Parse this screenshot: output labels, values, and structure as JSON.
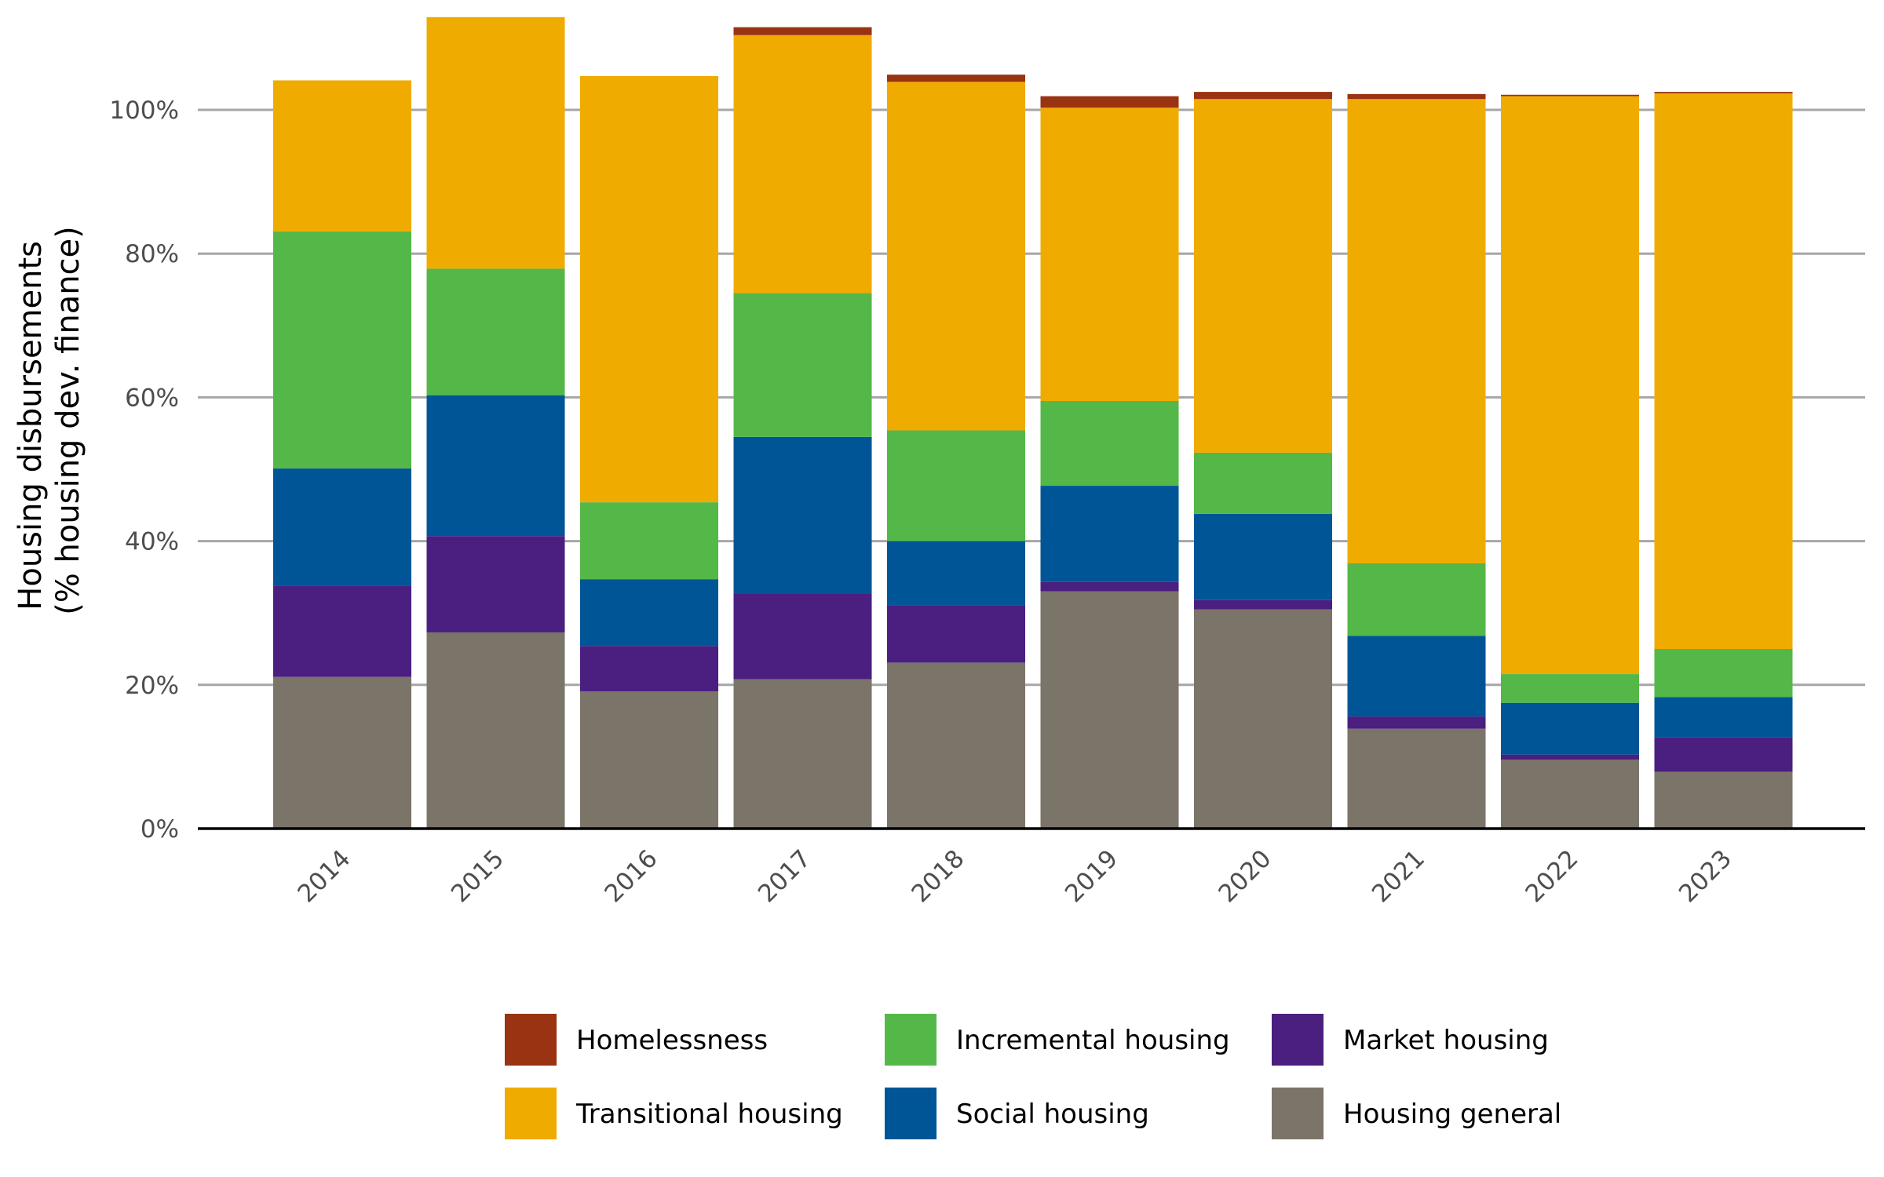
{
  "chart_data": {
    "type": "bar",
    "stacked": true,
    "ylabel_line1": "Housing disbursements",
    "ylabel_line2": "(% housing dev. finance)",
    "xlabel": "",
    "ylim": [
      0,
      115
    ],
    "yticks": [
      0,
      20,
      40,
      60,
      80,
      100
    ],
    "ytick_labels": [
      "0%",
      "20%",
      "40%",
      "60%",
      "80%",
      "100%"
    ],
    "grid": true,
    "legend_position": "bottom",
    "categories": [
      "2014",
      "2015",
      "2016",
      "2017",
      "2018",
      "2019",
      "2020",
      "2021",
      "2022",
      "2023"
    ],
    "series": [
      {
        "name": "Housing general",
        "color": "#7b7468",
        "values": [
          21.1,
          27.3,
          19.1,
          20.8,
          23.1,
          33.0,
          30.5,
          13.9,
          9.6,
          7.9
        ]
      },
      {
        "name": "Market housing",
        "color": "#4a1f80",
        "values": [
          12.7,
          13.4,
          6.3,
          11.9,
          8.0,
          1.3,
          1.3,
          1.7,
          0.7,
          4.8
        ]
      },
      {
        "name": "Social housing",
        "color": "#005596",
        "values": [
          16.3,
          19.6,
          9.3,
          21.8,
          8.9,
          13.4,
          12.0,
          11.2,
          7.2,
          5.6
        ]
      },
      {
        "name": "Incremental housing",
        "color": "#54b848",
        "values": [
          33.0,
          17.6,
          10.7,
          20.0,
          15.4,
          11.8,
          8.5,
          10.1,
          4.0,
          6.7
        ]
      },
      {
        "name": "Transitional housing",
        "color": "#f0ab00",
        "values": [
          21.0,
          35.0,
          59.3,
          35.9,
          48.5,
          40.8,
          49.2,
          64.6,
          80.4,
          77.3
        ]
      },
      {
        "name": "Homelessness",
        "color": "#9a3312",
        "values": [
          0,
          0,
          0,
          1.1,
          1.0,
          1.6,
          1.0,
          0.7,
          0.2,
          0.2
        ]
      }
    ],
    "legend_order": [
      "Homelessness",
      "Incremental housing",
      "Market housing",
      "Transitional housing",
      "Social housing",
      "Housing general"
    ]
  }
}
